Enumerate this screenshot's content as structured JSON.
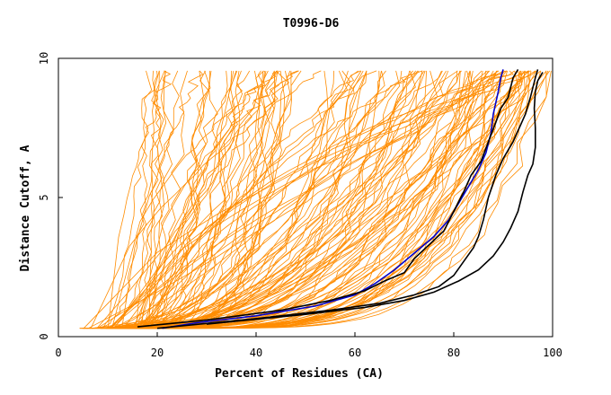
{
  "chart_data": {
    "type": "line",
    "title": "T0996-D6",
    "xlabel": "Percent of Residues (CA)",
    "ylabel": "Distance Cutoff, A",
    "xlim": [
      0,
      100
    ],
    "ylim": [
      0,
      10
    ],
    "x_ticks": [
      0,
      20,
      40,
      60,
      80,
      100
    ],
    "y_ticks": [
      0,
      5,
      10
    ],
    "grid": false,
    "colors": {
      "background_models": "#ff8c00",
      "highlight_black": "#000000",
      "highlight_blue": "#0000cc"
    },
    "highlight_series": [
      {
        "name": "model_blue",
        "color": "#0000cc",
        "points": [
          [
            21,
            0.3
          ],
          [
            28,
            0.5
          ],
          [
            40,
            0.75
          ],
          [
            52,
            1.1
          ],
          [
            60,
            1.5
          ],
          [
            64,
            1.9
          ],
          [
            68,
            2.4
          ],
          [
            72,
            3.0
          ],
          [
            76,
            3.6
          ],
          [
            79,
            4.2
          ],
          [
            81,
            4.8
          ],
          [
            83,
            5.4
          ],
          [
            85,
            6.0
          ],
          [
            86.5,
            6.6
          ],
          [
            87.5,
            7.3
          ],
          [
            88,
            8.0
          ],
          [
            89,
            8.8
          ],
          [
            89.5,
            9.3
          ],
          [
            90,
            9.6
          ]
        ]
      },
      {
        "name": "model_black_1",
        "color": "#000000",
        "points": [
          [
            16,
            0.35
          ],
          [
            30,
            0.6
          ],
          [
            45,
            0.95
          ],
          [
            55,
            1.3
          ],
          [
            62,
            1.65
          ],
          [
            66,
            2.0
          ],
          [
            70,
            2.3
          ],
          [
            72,
            2.8
          ],
          [
            75,
            3.3
          ],
          [
            78,
            3.8
          ],
          [
            80,
            4.5
          ],
          [
            82,
            5.2
          ],
          [
            83.5,
            5.8
          ],
          [
            85.5,
            6.3
          ],
          [
            87,
            7.0
          ],
          [
            88.5,
            7.7
          ],
          [
            89.5,
            8.2
          ],
          [
            91,
            8.6
          ],
          [
            92,
            9.3
          ],
          [
            93,
            9.6
          ]
        ]
      },
      {
        "name": "model_black_2",
        "color": "#000000",
        "points": [
          [
            20,
            0.3
          ],
          [
            40,
            0.65
          ],
          [
            55,
            0.95
          ],
          [
            65,
            1.2
          ],
          [
            72,
            1.5
          ],
          [
            77,
            1.8
          ],
          [
            80,
            2.2
          ],
          [
            82,
            2.7
          ],
          [
            84,
            3.2
          ],
          [
            85,
            3.6
          ],
          [
            86,
            4.2
          ],
          [
            87,
            5.0
          ],
          [
            88.5,
            5.8
          ],
          [
            90,
            6.4
          ],
          [
            92,
            7.0
          ],
          [
            93.5,
            7.6
          ],
          [
            94.5,
            8.0
          ],
          [
            95.5,
            8.6
          ],
          [
            96.5,
            9.3
          ],
          [
            97,
            9.6
          ]
        ]
      },
      {
        "name": "model_black_3",
        "color": "#000000",
        "points": [
          [
            30,
            0.45
          ],
          [
            50,
            0.8
          ],
          [
            62,
            1.05
          ],
          [
            70,
            1.3
          ],
          [
            76,
            1.6
          ],
          [
            81,
            2.0
          ],
          [
            85,
            2.4
          ],
          [
            88,
            2.9
          ],
          [
            90,
            3.4
          ],
          [
            91.5,
            3.9
          ],
          [
            93,
            4.5
          ],
          [
            94,
            5.2
          ],
          [
            95,
            5.8
          ],
          [
            96,
            6.2
          ],
          [
            96.5,
            6.8
          ],
          [
            96.5,
            7.5
          ],
          [
            96.3,
            8.2
          ],
          [
            96.5,
            8.8
          ],
          [
            97,
            9.2
          ],
          [
            98,
            9.5
          ]
        ]
      }
    ]
  }
}
